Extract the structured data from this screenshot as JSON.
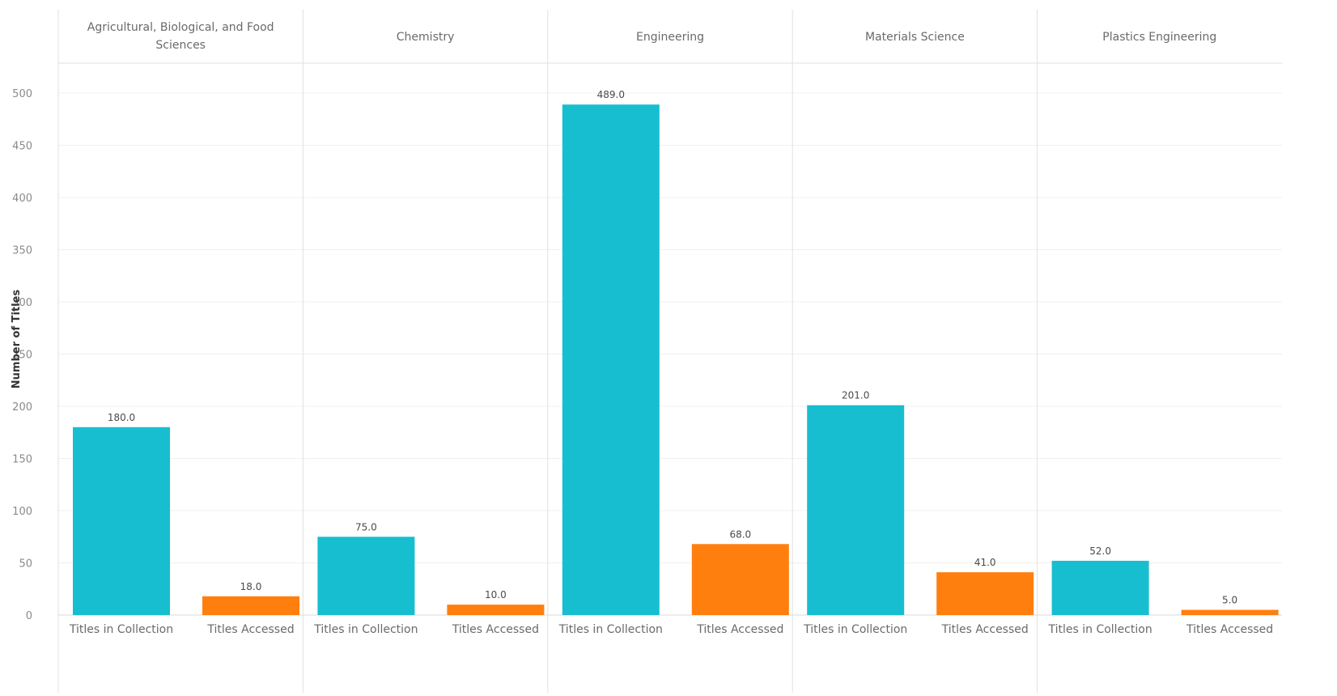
{
  "chart_data": {
    "type": "bar",
    "ylabel": "Number of Titles",
    "ylim": [
      0,
      500
    ],
    "yticks": [
      0,
      50,
      100,
      150,
      200,
      250,
      300,
      350,
      400,
      450,
      500
    ],
    "grid": true,
    "measures": [
      "Titles in Collection",
      "Titles Accessed"
    ],
    "colors": {
      "Titles in Collection": "#17becf",
      "Titles Accessed": "#ff7f0e"
    },
    "panels": [
      {
        "header_lines": [
          "Agricultural, Biological, and Food",
          "Sciences"
        ],
        "values": [
          180.0,
          18.0
        ],
        "value_labels": [
          "180.0",
          "18.0"
        ]
      },
      {
        "header_lines": [
          "Chemistry"
        ],
        "values": [
          75.0,
          10.0
        ],
        "value_labels": [
          "75.0",
          "10.0"
        ]
      },
      {
        "header_lines": [
          "Engineering"
        ],
        "values": [
          489.0,
          68.0
        ],
        "value_labels": [
          "489.0",
          "68.0"
        ]
      },
      {
        "header_lines": [
          "Materials Science"
        ],
        "values": [
          201.0,
          41.0
        ],
        "value_labels": [
          "201.0",
          "41.0"
        ]
      },
      {
        "header_lines": [
          "Plastics Engineering"
        ],
        "values": [
          52.0,
          5.0
        ],
        "value_labels": [
          "52.0",
          "5.0"
        ]
      }
    ]
  }
}
